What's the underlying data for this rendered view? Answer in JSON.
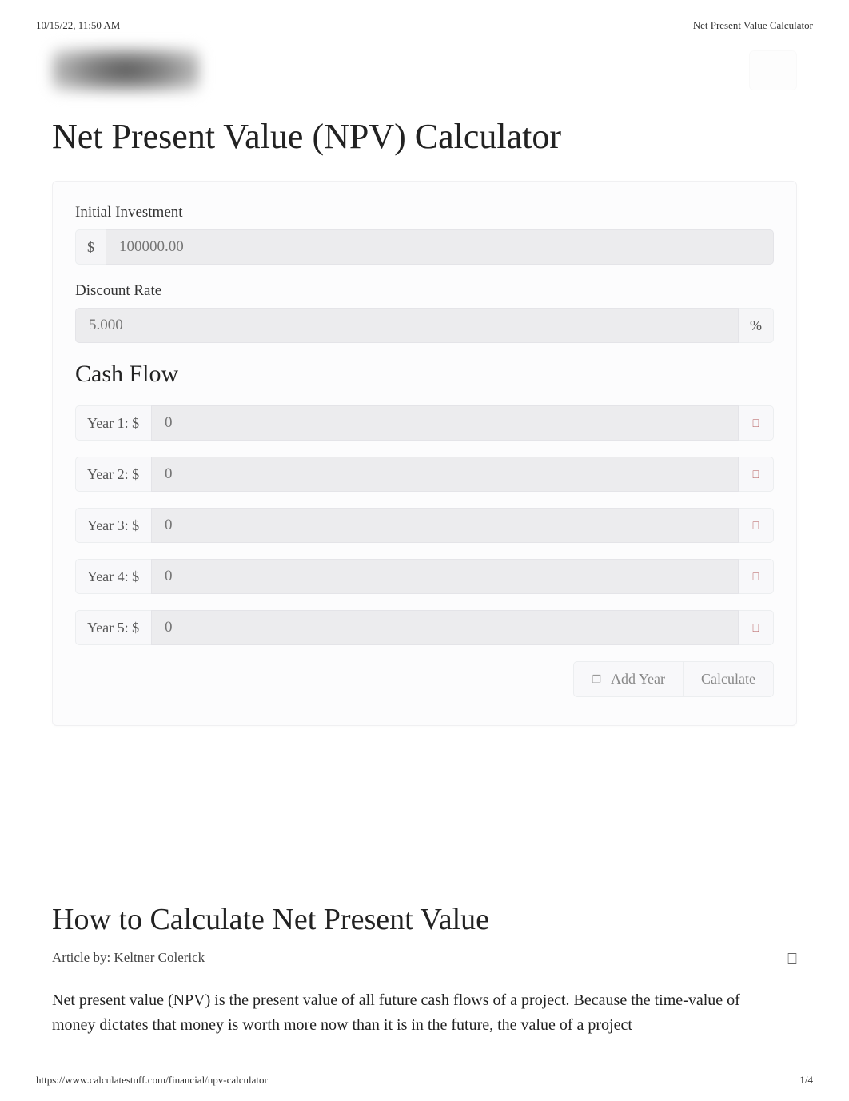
{
  "meta": {
    "timestamp": "10/15/22, 11:50 AM",
    "doc_title": "Net Present Value Calculator",
    "url": "https://www.calculatestuff.com/financial/npv-calculator",
    "page_num": "1/4"
  },
  "page_title": "Net Present Value (NPV) Calculator",
  "form": {
    "initial_investment": {
      "label": "Initial Investment",
      "prefix": "$",
      "placeholder": "100000.00"
    },
    "discount_rate": {
      "label": "Discount Rate",
      "suffix": "%",
      "placeholder": "5.000"
    },
    "cash_flow": {
      "heading": "Cash Flow",
      "years": [
        {
          "label": "Year 1: $",
          "placeholder": "0"
        },
        {
          "label": "Year 2: $",
          "placeholder": "0"
        },
        {
          "label": "Year 3: $",
          "placeholder": "0"
        },
        {
          "label": "Year 4: $",
          "placeholder": "0"
        },
        {
          "label": "Year 5: $",
          "placeholder": "0"
        }
      ]
    },
    "buttons": {
      "add_year": "Add Year",
      "calculate": "Calculate"
    }
  },
  "article": {
    "title": "How to Calculate Net Present Value",
    "byline": "Article by: Keltner Colerick",
    "body": "Net present value (NPV) is the present value of all future cash flows of a project. Because the time-value of money dictates that money is worth more now than it is in the future, the value of a project"
  },
  "colors": {
    "background": "#ffffff",
    "card_bg": "#fcfcfd",
    "input_bg": "#ececee",
    "addon_bg": "#f5f5f7",
    "border": "#eceef0",
    "text_primary": "#222222",
    "text_secondary": "#666666",
    "delete_icon": "#b05050"
  }
}
